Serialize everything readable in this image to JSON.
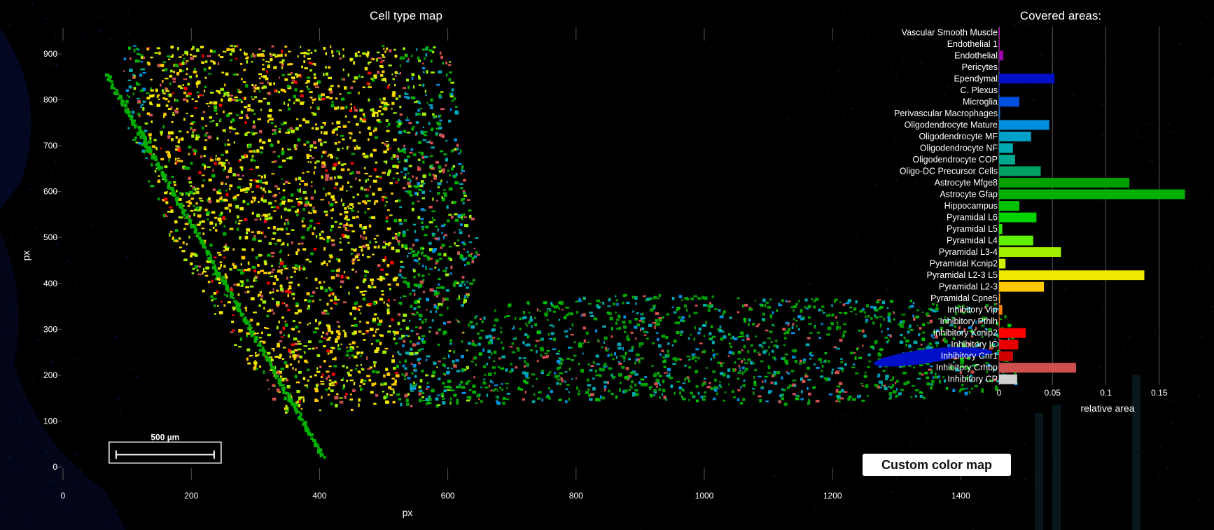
{
  "map": {
    "title": "Cell type map",
    "xlabel": "px",
    "ylabel": "px",
    "xticks": [
      0,
      200,
      400,
      600,
      800,
      1000,
      1200,
      1400
    ],
    "yticks": [
      0,
      100,
      200,
      300,
      400,
      500,
      600,
      700,
      800,
      900
    ],
    "xlim": [
      0,
      1550
    ],
    "ylim": [
      -20,
      960
    ],
    "scalebar_label": "500 µm"
  },
  "chart_data": {
    "type": "bar",
    "orientation": "horizontal",
    "title": "Covered areas:",
    "xlabel": "relative area",
    "xticks": [
      0,
      0.05,
      0.1,
      0.15
    ],
    "xlim": [
      0,
      0.175
    ],
    "grid": true,
    "categories": [
      "Vascular Smooth Muscle",
      "Endothelial 1",
      "Endothelial",
      "Pericytes",
      "Ependymal",
      "C. Plexus",
      "Microglia",
      "Perivascular Macrophages",
      "Oligodendrocyte Mature",
      "Oligodendrocyte MF",
      "Oligodendrocyte NF",
      "Oligodendrocyte COP",
      "Oligo-DC Precursor Cells",
      "Astrocyte Mfge8",
      "Astrocyte Gfap",
      "Hippocampus",
      "Pyramidal L6",
      "Pyramidal L5",
      "Pyramidal L4",
      "Pyramidal L3-4",
      "Pyramidal Kcnip2",
      "Pyramidal L2-3 L5",
      "Pyramidal L2-3",
      "Pyramidal Cpne5",
      "Inhibitory Vip",
      "Inhibitory Pthlh",
      "Inhibitory Kcnip2",
      "Inhibitory IC",
      "Inhibitory Cnr1",
      "Inhibitory Crhbp",
      "Inhibitory CP"
    ],
    "values": [
      0.0005,
      0.0005,
      0.004,
      0.0003,
      0.052,
      0.0003,
      0.019,
      0.001,
      0.047,
      0.03,
      0.013,
      0.015,
      0.039,
      0.122,
      0.174,
      0.019,
      0.035,
      0.003,
      0.032,
      0.058,
      0.006,
      0.136,
      0.042,
      0.001,
      0.003,
      0.0005,
      0.025,
      0.018,
      0.013,
      0.072,
      0.017
    ],
    "colors": [
      "#ff00ff",
      "#d400d4",
      "#a000b0",
      "#50006e",
      "#0010c8",
      "#0022cc",
      "#0050e0",
      "#0070d8",
      "#0090e0",
      "#00a0c8",
      "#00a8b0",
      "#00a890",
      "#00a060",
      "#00a000",
      "#00b000",
      "#00c000",
      "#00d400",
      "#30e400",
      "#60f000",
      "#a0f000",
      "#d0f000",
      "#f0e800",
      "#ffc800",
      "#ffa000",
      "#ff8000",
      "#ff5000",
      "#ff0000",
      "#e80000",
      "#d00000",
      "#d05050",
      "#d0d0d0"
    ]
  },
  "button": {
    "label": "Custom color map"
  }
}
